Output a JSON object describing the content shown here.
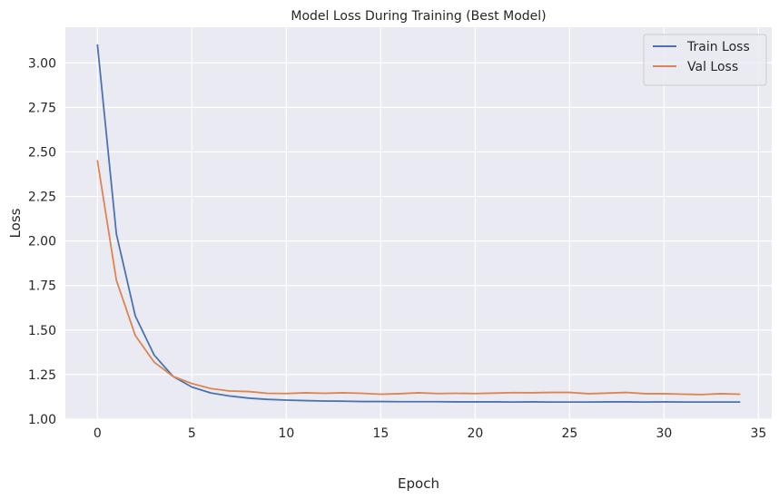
{
  "chart_data": {
    "type": "line",
    "title": "Model Loss During Training (Best Model)",
    "xlabel": "Epoch",
    "ylabel": "Loss",
    "xlim": [
      -1.7,
      35.7
    ],
    "ylim": [
      1.0,
      3.2
    ],
    "xticks": [
      0,
      5,
      10,
      15,
      20,
      25,
      30,
      35
    ],
    "yticks": [
      1.0,
      1.25,
      1.5,
      1.75,
      2.0,
      2.25,
      2.5,
      2.75,
      3.0
    ],
    "ytick_labels": [
      "1.00",
      "1.25",
      "1.50",
      "1.75",
      "2.00",
      "2.25",
      "2.50",
      "2.75",
      "3.00"
    ],
    "grid": true,
    "legend_position": "top-right",
    "x": [
      0,
      1,
      2,
      3,
      4,
      5,
      6,
      7,
      8,
      9,
      10,
      11,
      12,
      13,
      14,
      15,
      16,
      17,
      18,
      19,
      20,
      21,
      22,
      23,
      24,
      25,
      26,
      27,
      28,
      29,
      30,
      31,
      32,
      33,
      34
    ],
    "series": [
      {
        "name": "Train Loss",
        "color": "#4c72b0",
        "values": [
          3.1,
          2.04,
          1.58,
          1.36,
          1.24,
          1.18,
          1.147,
          1.13,
          1.118,
          1.111,
          1.107,
          1.104,
          1.102,
          1.101,
          1.099,
          1.099,
          1.098,
          1.098,
          1.098,
          1.097,
          1.097,
          1.097,
          1.096,
          1.097,
          1.096,
          1.096,
          1.096,
          1.097,
          1.097,
          1.096,
          1.097,
          1.096,
          1.096,
          1.096,
          1.096
        ]
      },
      {
        "name": "Val Loss",
        "color": "#dd8452",
        "values": [
          2.45,
          1.78,
          1.47,
          1.32,
          1.24,
          1.2,
          1.172,
          1.158,
          1.155,
          1.145,
          1.144,
          1.148,
          1.145,
          1.148,
          1.145,
          1.14,
          1.143,
          1.148,
          1.144,
          1.145,
          1.144,
          1.146,
          1.149,
          1.148,
          1.15,
          1.15,
          1.143,
          1.146,
          1.15,
          1.143,
          1.143,
          1.14,
          1.138,
          1.143,
          1.14
        ]
      }
    ]
  }
}
